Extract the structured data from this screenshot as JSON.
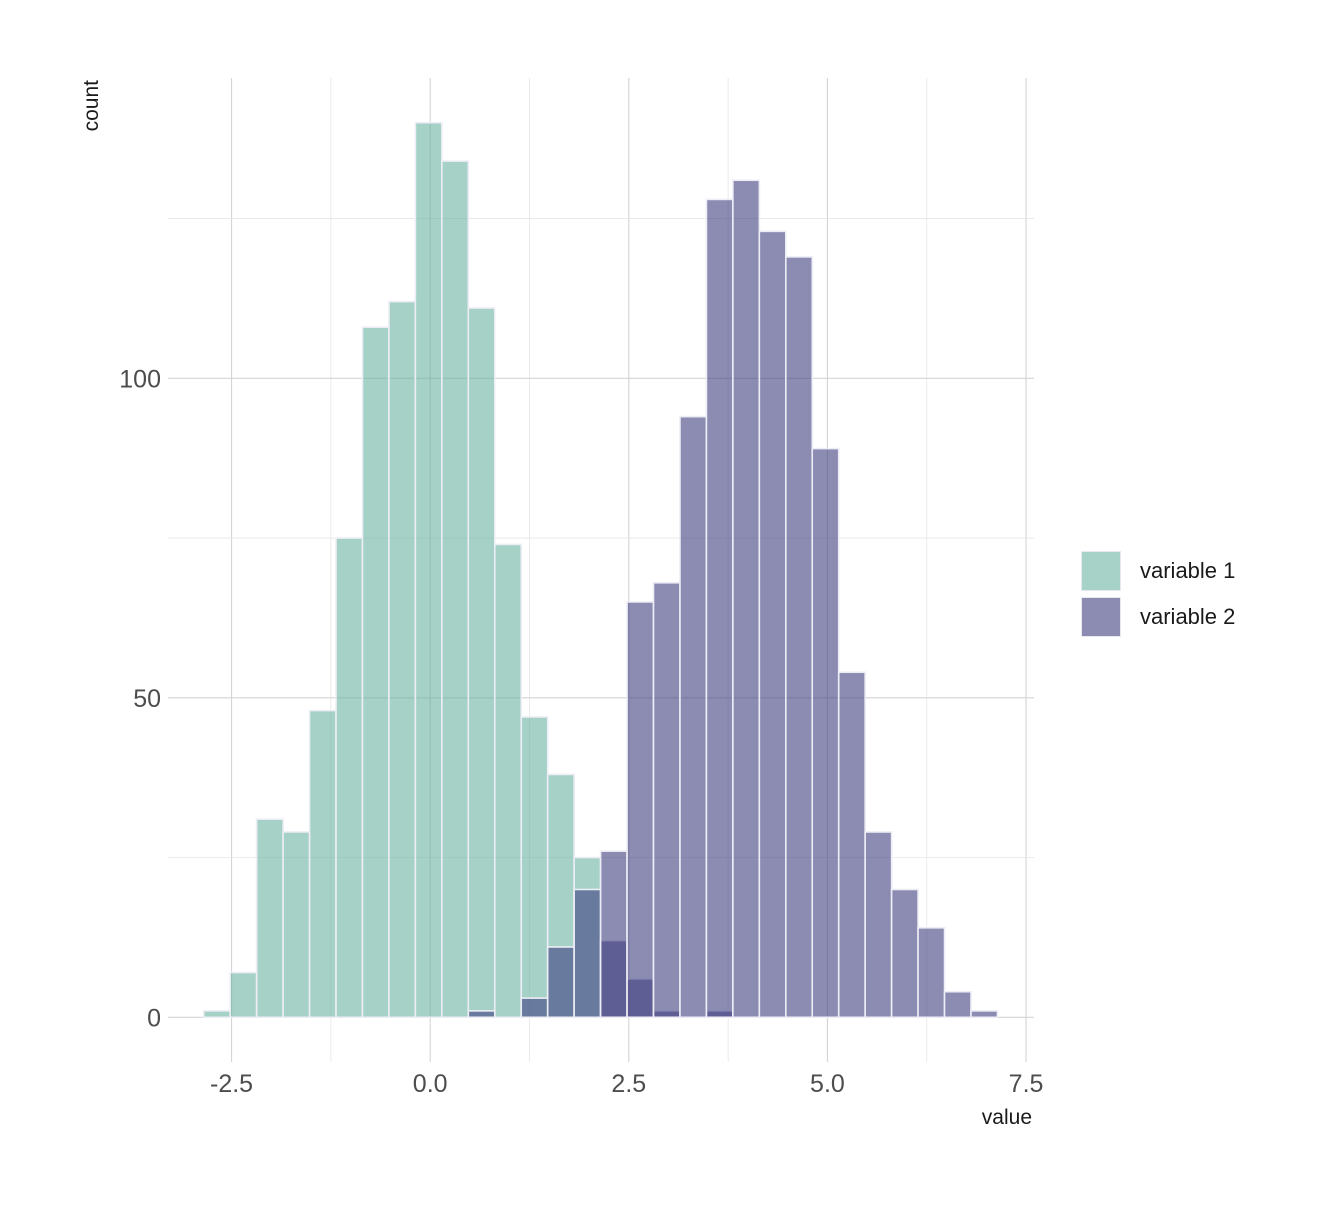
{
  "chart_data": {
    "type": "histogram",
    "xlabel": "value",
    "ylabel": "count",
    "xlim": [
      -3.3,
      7.6
    ],
    "ylim": [
      -7,
      147
    ],
    "x_ticks": [
      -2.5,
      0.0,
      2.5,
      5.0,
      7.5
    ],
    "x_tick_labels": [
      "-2.5",
      "0.0",
      "2.5",
      "5.0",
      "7.5"
    ],
    "y_ticks": [
      0,
      50,
      100
    ],
    "y_tick_labels": [
      "0",
      "50",
      "100"
    ],
    "grid": true,
    "legend_position": "right",
    "bin_start": -2.85,
    "bin_width": 0.333,
    "series": [
      {
        "name": "variable 1",
        "color": "#69b3a2",
        "opacity": 0.6,
        "values": [
          1,
          7,
          31,
          29,
          48,
          75,
          108,
          112,
          140,
          134,
          111,
          74,
          47,
          38,
          25,
          0,
          0,
          0,
          0,
          0,
          0,
          0,
          0,
          0,
          0,
          0,
          0,
          0,
          0,
          0
        ]
      },
      {
        "name": "variable 2",
        "color": "#404080",
        "opacity": 0.6,
        "values": [
          0,
          0,
          0,
          0,
          0,
          0,
          0,
          0,
          0,
          0,
          1,
          0,
          3,
          11,
          20,
          12,
          6,
          1,
          0,
          1,
          0,
          0,
          0,
          0,
          0,
          0,
          0,
          0,
          0,
          0
        ]
      },
      {
        "name": "variable 2",
        "color": "#404080",
        "opacity": 0.6,
        "values": [
          0,
          0,
          0,
          0,
          0,
          0,
          0,
          0,
          0,
          0,
          0,
          0,
          0,
          0,
          0,
          26,
          65,
          68,
          94,
          128,
          131,
          123,
          119,
          89,
          54,
          29,
          20,
          14,
          4,
          1
        ]
      }
    ]
  },
  "legend": {
    "items": [
      {
        "label": "variable 1",
        "color": "#69b3a2"
      },
      {
        "label": "variable 2",
        "color": "#404080"
      }
    ]
  }
}
